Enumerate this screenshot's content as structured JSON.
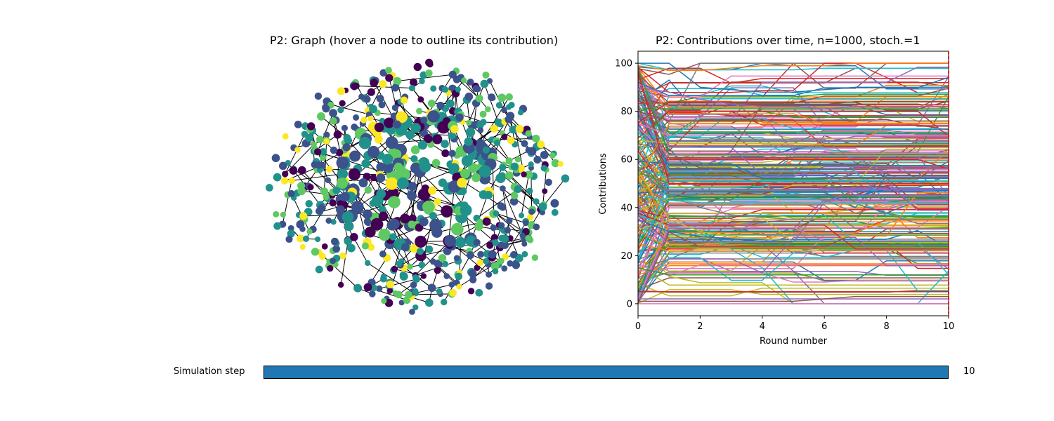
{
  "graph_panel": {
    "title": "P2: Graph (hover a node to outline its contribution)",
    "node_count": 1000,
    "edge_color": "#000000",
    "colormap": [
      "#440154",
      "#3b528b",
      "#21918c",
      "#5ec962",
      "#fde725"
    ]
  },
  "slider": {
    "label": "Simulation step",
    "value": "10",
    "min": 0,
    "max": 10,
    "fill_color": "#1f77b4"
  },
  "chart_data": {
    "type": "line",
    "title": "P2: Contributions over time, n=1000, stoch.=1",
    "xlabel": "Round number",
    "ylabel": "Contributions",
    "xlim": [
      0,
      10
    ],
    "ylim": [
      -5,
      105
    ],
    "x_ticks": [
      "0",
      "2",
      "4",
      "6",
      "8",
      "10"
    ],
    "y_ticks": [
      "0",
      "20",
      "40",
      "60",
      "80",
      "100"
    ],
    "x": [
      0,
      1,
      2,
      3,
      4,
      5,
      6,
      7,
      8,
      9,
      10
    ],
    "series_count": 1000,
    "grid": false,
    "current_step_marker": 10,
    "series": [
      {
        "values": [
          100,
          100,
          90,
          89,
          88,
          88,
          89,
          90,
          90,
          90,
          90
        ]
      },
      {
        "values": [
          99,
          97,
          97,
          98,
          99,
          99,
          99,
          100,
          100,
          100,
          100
        ]
      },
      {
        "values": [
          98,
          62,
          62,
          62,
          62,
          62,
          62,
          62,
          62,
          62,
          62
        ]
      },
      {
        "values": [
          97,
          50,
          50,
          50,
          50,
          50,
          50,
          50,
          50,
          50,
          50
        ]
      },
      {
        "values": [
          90,
          88,
          85,
          83,
          82,
          82,
          81,
          82,
          82,
          82,
          82
        ]
      },
      {
        "values": [
          80,
          76,
          76,
          76,
          76,
          76,
          76,
          76,
          76,
          76,
          76
        ]
      },
      {
        "values": [
          75,
          70,
          70,
          70,
          70,
          70,
          70,
          70,
          70,
          70,
          70
        ]
      },
      {
        "values": [
          65,
          45,
          40,
          37,
          36,
          35,
          35,
          35,
          35,
          35,
          35
        ]
      },
      {
        "values": [
          55,
          35,
          30,
          28,
          27,
          26,
          26,
          26,
          26,
          26,
          26
        ]
      },
      {
        "values": [
          45,
          43,
          42,
          42,
          42,
          42,
          42,
          42,
          42,
          42,
          42
        ]
      },
      {
        "values": [
          35,
          30,
          28,
          27,
          26,
          26,
          26,
          26,
          26,
          26,
          26
        ]
      },
      {
        "values": [
          25,
          22,
          22,
          22,
          22,
          22,
          22,
          22,
          22,
          22,
          22
        ]
      },
      {
        "values": [
          15,
          12,
          12,
          12,
          12,
          12,
          12,
          12,
          12,
          12,
          12
        ]
      },
      {
        "values": [
          5,
          5,
          5,
          5,
          5,
          5,
          5,
          5,
          5,
          5,
          5
        ]
      },
      {
        "values": [
          2,
          2,
          2,
          2,
          2,
          2,
          2,
          2,
          2,
          2,
          2
        ]
      },
      {
        "values": [
          1,
          1,
          1,
          1,
          1,
          1,
          2,
          3,
          3,
          3,
          3
        ]
      },
      {
        "values": [
          0,
          0,
          0,
          0,
          0,
          0,
          0,
          0,
          0,
          0,
          0
        ]
      }
    ]
  }
}
